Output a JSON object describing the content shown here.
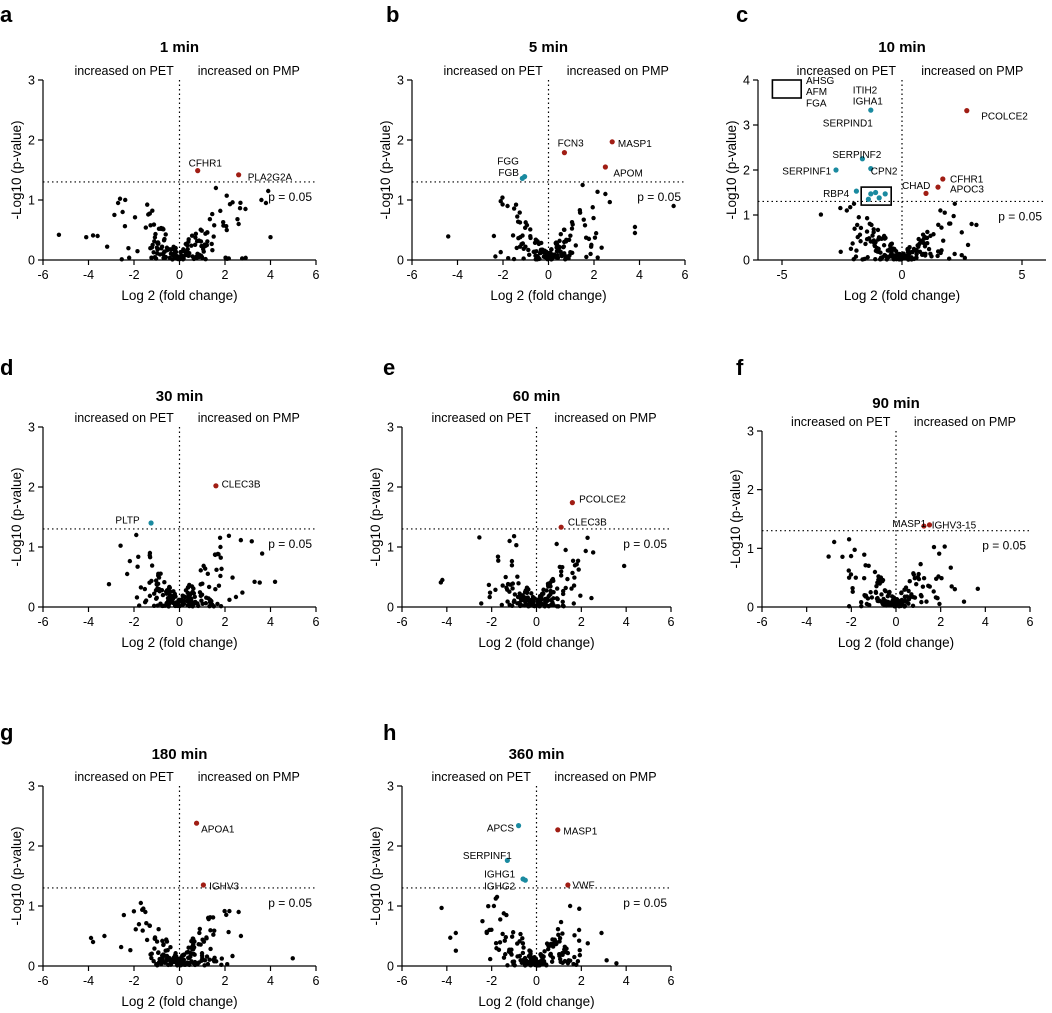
{
  "colors": {
    "pet": "#1a8aa0",
    "pmp": "#a01d14",
    "ns": "#000000"
  },
  "chart_data": [
    {
      "type": "scatter",
      "letter": "a",
      "title": "1 min",
      "xlabel": "Log 2 (fold change)",
      "ylabel": "-Log10 (p-value)",
      "xlim": [
        -6,
        6
      ],
      "ylim": [
        0,
        3
      ],
      "xticks": [
        -6,
        -4,
        -2,
        0,
        2,
        4,
        6
      ],
      "yticks": [
        0,
        1,
        2,
        3
      ],
      "threshold": 1.301,
      "threshold_label": "p = 0.05",
      "left_label": "increased on PET",
      "right_label": "increased on PMP",
      "seed": 11,
      "n_bg": 150,
      "ns_points": [
        [
          -5.3,
          0.42
        ],
        [
          -4.1,
          0.38
        ],
        [
          -3.8,
          0.41
        ],
        [
          -3.6,
          0.4
        ],
        [
          -2.7,
          0.95
        ],
        [
          -2.5,
          0.8
        ],
        [
          2.9,
          0.85
        ],
        [
          3.6,
          1.0
        ],
        [
          3.8,
          0.95
        ],
        [
          3.9,
          1.15
        ],
        [
          4.0,
          0.38
        ],
        [
          1.6,
          1.2
        ],
        [
          2.6,
          0.6
        ]
      ],
      "sig_points": [
        {
          "x": 0.8,
          "y": 1.49,
          "color": "pmp",
          "label": "CFHR1",
          "lx": 0.4,
          "ly": 1.62,
          "anchor": "start"
        },
        {
          "x": 2.6,
          "y": 1.42,
          "color": "pmp",
          "label": "PLA2G2A",
          "lx": 3.0,
          "ly": 1.38,
          "anchor": "start"
        }
      ],
      "boxes": []
    },
    {
      "type": "scatter",
      "letter": "b",
      "title": "5 min",
      "xlabel": "Log 2 (fold change)",
      "ylabel": "-Log10 (p-value)",
      "xlim": [
        -6,
        6
      ],
      "ylim": [
        0,
        3
      ],
      "xticks": [
        -6,
        -4,
        -2,
        0,
        2,
        4,
        6
      ],
      "yticks": [
        0,
        1,
        2,
        3
      ],
      "threshold": 1.301,
      "threshold_label": "p = 0.05",
      "left_label": "increased on PET",
      "right_label": "increased on PMP",
      "seed": 23,
      "n_bg": 140,
      "ns_points": [
        [
          -2.1,
          0.98
        ],
        [
          -1.8,
          0.9
        ],
        [
          -2.4,
          0.4
        ],
        [
          3.8,
          0.55
        ],
        [
          3.8,
          0.45
        ],
        [
          5.5,
          0.9
        ],
        [
          2.5,
          1.1
        ],
        [
          1.5,
          1.25
        ]
      ],
      "sig_points": [
        {
          "x": -1.15,
          "y": 1.36,
          "color": "pet",
          "label": "",
          "lx": 0,
          "ly": 0,
          "anchor": "start"
        },
        {
          "x": -1.05,
          "y": 1.39,
          "color": "pet",
          "label": "",
          "lx": 0,
          "ly": 0,
          "anchor": "start"
        },
        {
          "x": 0.7,
          "y": 1.79,
          "color": "pmp",
          "label": "FCN3",
          "lx": 0.4,
          "ly": 1.95,
          "anchor": "start"
        },
        {
          "x": 2.8,
          "y": 1.97,
          "color": "pmp",
          "label": "MASP1",
          "lx": 3.05,
          "ly": 1.94,
          "anchor": "start"
        },
        {
          "x": 2.5,
          "y": 1.55,
          "color": "pmp",
          "label": "APOM",
          "lx": 2.85,
          "ly": 1.45,
          "anchor": "start"
        },
        {
          "x": 0,
          "y": 0,
          "color": "none",
          "label": "FGG",
          "lx": -1.3,
          "ly": 1.65,
          "anchor": "end"
        },
        {
          "x": 0,
          "y": 0,
          "color": "none",
          "label": "FGB",
          "lx": -1.3,
          "ly": 1.46,
          "anchor": "end"
        }
      ],
      "boxes": []
    },
    {
      "type": "scatter",
      "letter": "c",
      "title": "10 min",
      "xlabel": "Log 2 (fold change)",
      "ylabel": "-Log10 (p-value)",
      "xlim": [
        -6,
        6
      ],
      "ylim": [
        0,
        4
      ],
      "xticks": [
        -5,
        0,
        5
      ],
      "yticks": [
        0,
        1,
        2,
        3,
        4
      ],
      "threshold": 1.301,
      "threshold_label": "p = 0.05",
      "left_label": "increased on PET",
      "right_label": "increased on PMP",
      "seed": 37,
      "n_bg": 170,
      "ns_points": [
        [
          3.1,
          0.78
        ],
        [
          2.9,
          0.8
        ],
        [
          1.6,
          1.1
        ],
        [
          2.2,
          1.25
        ],
        [
          -2.0,
          1.25
        ],
        [
          -2.3,
          1.1
        ],
        [
          -1.8,
          0.95
        ]
      ],
      "sig_points": [
        {
          "x": 2.7,
          "y": 3.32,
          "color": "pmp",
          "label": "PCOLCE2",
          "lx": 3.3,
          "ly": 3.2,
          "anchor": "start"
        },
        {
          "x": 1.7,
          "y": 1.8,
          "color": "pmp",
          "label": "CFHR1",
          "lx": 2.0,
          "ly": 1.8,
          "anchor": "start"
        },
        {
          "x": 1.5,
          "y": 1.62,
          "color": "pmp",
          "label": "APOC3",
          "lx": 2.0,
          "ly": 1.58,
          "anchor": "start"
        },
        {
          "x": 1.0,
          "y": 1.48,
          "color": "pmp",
          "label": "CHAD",
          "lx": 0.0,
          "ly": 1.66,
          "anchor": "start"
        },
        {
          "x": -1.3,
          "y": 3.33,
          "color": "pet",
          "label": "",
          "lx": 0,
          "ly": 0,
          "anchor": "start"
        },
        {
          "x": -1.65,
          "y": 2.25,
          "color": "pet",
          "label": "SERPINF2",
          "lx": -2.9,
          "ly": 2.34,
          "anchor": "start"
        },
        {
          "x": -1.3,
          "y": 2.03,
          "color": "pet",
          "label": "CPN2",
          "lx": -1.3,
          "ly": 1.98,
          "anchor": "start"
        },
        {
          "x": -2.75,
          "y": 2.0,
          "color": "pet",
          "label": "SERPINF1",
          "lx": -2.95,
          "ly": 1.98,
          "anchor": "end"
        },
        {
          "x": -1.9,
          "y": 1.53,
          "color": "pet",
          "label": "RBP4",
          "lx": -2.2,
          "ly": 1.48,
          "anchor": "end"
        },
        {
          "x": -1.3,
          "y": 1.47,
          "color": "pet",
          "label": "",
          "lx": 0,
          "ly": 0,
          "anchor": "start"
        },
        {
          "x": -1.1,
          "y": 1.5,
          "color": "pet",
          "label": "",
          "lx": 0,
          "ly": 0,
          "anchor": "start"
        },
        {
          "x": -0.7,
          "y": 1.47,
          "color": "pet",
          "label": "",
          "lx": 0,
          "ly": 0,
          "anchor": "start"
        },
        {
          "x": -1.4,
          "y": 1.35,
          "color": "pet",
          "label": "",
          "lx": 0,
          "ly": 0,
          "anchor": "start"
        },
        {
          "x": -0.95,
          "y": 1.38,
          "color": "pet",
          "label": "",
          "lx": 0,
          "ly": 0,
          "anchor": "start"
        },
        {
          "x": 0,
          "y": 0,
          "color": "none",
          "label": "AHSG",
          "lx": -4.0,
          "ly": 3.99,
          "anchor": "start"
        },
        {
          "x": 0,
          "y": 0,
          "color": "none",
          "label": "AFM",
          "lx": -4.0,
          "ly": 3.74,
          "anchor": "start"
        },
        {
          "x": 0,
          "y": 0,
          "color": "none",
          "label": "FGA",
          "lx": -4.0,
          "ly": 3.49,
          "anchor": "start"
        },
        {
          "x": 0,
          "y": 0,
          "color": "none",
          "label": "ITIH2",
          "lx": -2.05,
          "ly": 3.78,
          "anchor": "start"
        },
        {
          "x": 0,
          "y": 0,
          "color": "none",
          "label": "IGHA1",
          "lx": -2.05,
          "ly": 3.53,
          "anchor": "start"
        },
        {
          "x": 0,
          "y": 0,
          "color": "none",
          "label": "SERPIND1",
          "lx": -3.3,
          "ly": 3.05,
          "anchor": "start"
        }
      ],
      "boxes": [
        [
          -5.4,
          3.6,
          -4.2,
          4.0
        ],
        [
          -1.7,
          1.22,
          -0.45,
          1.62
        ]
      ]
    },
    {
      "type": "scatter",
      "letter": "d",
      "title": "30 min",
      "xlabel": "Log 2 (fold change)",
      "ylabel": "-Log10 (p-value)",
      "xlim": [
        -6,
        6
      ],
      "ylim": [
        0,
        3
      ],
      "xticks": [
        -6,
        -4,
        -2,
        0,
        2,
        4,
        6
      ],
      "yticks": [
        0,
        1,
        2,
        3
      ],
      "threshold": 1.301,
      "threshold_label": "p = 0.05",
      "left_label": "increased on PET",
      "right_label": "increased on PMP",
      "seed": 51,
      "n_bg": 160,
      "ns_points": [
        [
          -3.1,
          0.38
        ],
        [
          -1.9,
          1.2
        ],
        [
          -2.3,
          0.55
        ],
        [
          -1.3,
          0.9
        ],
        [
          1.8,
          1.0
        ],
        [
          4.2,
          0.42
        ],
        [
          3.3,
          0.42
        ]
      ],
      "sig_points": [
        {
          "x": 1.6,
          "y": 2.02,
          "color": "pmp",
          "label": "CLEC3B",
          "lx": 1.85,
          "ly": 2.05,
          "anchor": "start"
        },
        {
          "x": -1.25,
          "y": 1.4,
          "color": "pet",
          "label": "PLTP",
          "lx": -1.75,
          "ly": 1.45,
          "anchor": "end"
        }
      ],
      "boxes": []
    },
    {
      "type": "scatter",
      "letter": "e",
      "title": "60 min",
      "xlabel": "Log 2 (fold change)",
      "ylabel": "-Log10 (p-value)",
      "xlim": [
        -6,
        6
      ],
      "ylim": [
        0,
        3
      ],
      "xticks": [
        -6,
        -4,
        -2,
        0,
        2,
        4,
        6
      ],
      "yticks": [
        0,
        1,
        2,
        3
      ],
      "threshold": 1.301,
      "threshold_label": "p = 0.05",
      "left_label": "increased on PET",
      "right_label": "increased on PMP",
      "seed": 67,
      "n_bg": 170,
      "ns_points": [
        [
          -4.2,
          0.45
        ],
        [
          -1.2,
          1.1
        ],
        [
          -1.0,
          1.18
        ],
        [
          -0.9,
          1.03
        ],
        [
          0.9,
          1.05
        ],
        [
          1.3,
          0.95
        ]
      ],
      "sig_points": [
        {
          "x": 1.6,
          "y": 1.74,
          "color": "pmp",
          "label": "PCOLCE2",
          "lx": 1.9,
          "ly": 1.8,
          "anchor": "start"
        },
        {
          "x": 1.1,
          "y": 1.33,
          "color": "pmp",
          "label": "CLEC3B",
          "lx": 1.4,
          "ly": 1.42,
          "anchor": "start"
        }
      ],
      "boxes": []
    },
    {
      "type": "scatter",
      "letter": "f",
      "title": "90 min",
      "xlabel": "Log 2 (fold change)",
      "ylabel": "-Log10 (p-value)",
      "xlim": [
        -6,
        6
      ],
      "ylim": [
        0,
        3
      ],
      "xticks": [
        -6,
        -4,
        -2,
        0,
        2,
        4,
        6
      ],
      "yticks": [
        0,
        1,
        2,
        3
      ],
      "threshold": 1.301,
      "threshold_label": "p = 0.05",
      "left_label": "increased on PET",
      "right_label": "increased on PMP",
      "seed": 79,
      "n_bg": 150,
      "ns_points": [
        [
          -2.1,
          0.5
        ],
        [
          -1.8,
          0.5
        ],
        [
          1.9,
          0.52
        ],
        [
          1.8,
          0.48
        ]
      ],
      "sig_points": [
        {
          "x": 1.25,
          "y": 1.38,
          "color": "pmp",
          "label": "MASP1",
          "lx": 1.35,
          "ly": 1.42,
          "anchor": "end"
        },
        {
          "x": 1.5,
          "y": 1.4,
          "color": "pmp",
          "label": "IGHV3-15",
          "lx": 1.6,
          "ly": 1.4,
          "anchor": "start"
        }
      ],
      "boxes": []
    },
    {
      "type": "scatter",
      "letter": "g",
      "title": "180 min",
      "xlabel": "Log 2 (fold change)",
      "ylabel": "-Log10 (p-value)",
      "xlim": [
        -6,
        6
      ],
      "ylim": [
        0,
        3
      ],
      "xticks": [
        -6,
        -4,
        -2,
        0,
        2,
        4,
        6
      ],
      "yticks": [
        0,
        1,
        2,
        3
      ],
      "threshold": 1.301,
      "threshold_label": "p = 0.05",
      "left_label": "increased on PET",
      "right_label": "increased on PMP",
      "seed": 97,
      "n_bg": 175,
      "ns_points": [
        [
          -3.8,
          0.4
        ],
        [
          -3.3,
          0.5
        ],
        [
          -1.7,
          1.05
        ],
        [
          -1.5,
          0.9
        ],
        [
          2.7,
          0.5
        ],
        [
          2.6,
          0.9
        ]
      ],
      "sig_points": [
        {
          "x": 0.75,
          "y": 2.38,
          "color": "pmp",
          "label": "APOA1",
          "lx": 0.95,
          "ly": 2.28,
          "anchor": "start"
        },
        {
          "x": 1.05,
          "y": 1.35,
          "color": "pmp",
          "label": "IGHV3",
          "lx": 1.3,
          "ly": 1.33,
          "anchor": "start"
        }
      ],
      "boxes": []
    },
    {
      "type": "scatter",
      "letter": "h",
      "title": "360 min",
      "xlabel": "Log 2 (fold change)",
      "ylabel": "-Log10 (p-value)",
      "xlim": [
        -6,
        6
      ],
      "ylim": [
        0,
        3
      ],
      "xticks": [
        -6,
        -4,
        -2,
        0,
        2,
        4,
        6
      ],
      "yticks": [
        0,
        1,
        2,
        3
      ],
      "threshold": 1.301,
      "threshold_label": "p = 0.05",
      "left_label": "increased on PET",
      "right_label": "increased on PMP",
      "seed": 113,
      "n_bg": 170,
      "ns_points": [
        [
          -3.6,
          0.55
        ],
        [
          -1.9,
          1.0
        ],
        [
          -2.1,
          0.6
        ],
        [
          1.9,
          0.6
        ],
        [
          2.9,
          0.55
        ],
        [
          1.5,
          1.0
        ]
      ],
      "sig_points": [
        {
          "x": -0.8,
          "y": 2.34,
          "color": "pet",
          "label": "APCS",
          "lx": -1.0,
          "ly": 2.3,
          "anchor": "end"
        },
        {
          "x": 0.95,
          "y": 2.27,
          "color": "pmp",
          "label": "MASP1",
          "lx": 1.2,
          "ly": 2.25,
          "anchor": "start"
        },
        {
          "x": -1.3,
          "y": 1.76,
          "color": "pet",
          "label": "SERPINF1",
          "lx": -1.1,
          "ly": 1.84,
          "anchor": "end"
        },
        {
          "x": -0.6,
          "y": 1.45,
          "color": "pet",
          "label": "",
          "lx": 0,
          "ly": 0,
          "anchor": "start"
        },
        {
          "x": -0.5,
          "y": 1.43,
          "color": "pet",
          "label": "",
          "lx": 0,
          "ly": 0,
          "anchor": "start"
        },
        {
          "x": 1.4,
          "y": 1.35,
          "color": "pmp",
          "label": "VWF",
          "lx": 1.6,
          "ly": 1.35,
          "anchor": "start"
        },
        {
          "x": 0,
          "y": 0,
          "color": "none",
          "label": "IGHG1",
          "lx": -0.95,
          "ly": 1.53,
          "anchor": "end"
        },
        {
          "x": 0,
          "y": 0,
          "color": "none",
          "label": "IGHG2",
          "lx": -0.95,
          "ly": 1.33,
          "anchor": "end"
        }
      ],
      "boxes": []
    }
  ]
}
